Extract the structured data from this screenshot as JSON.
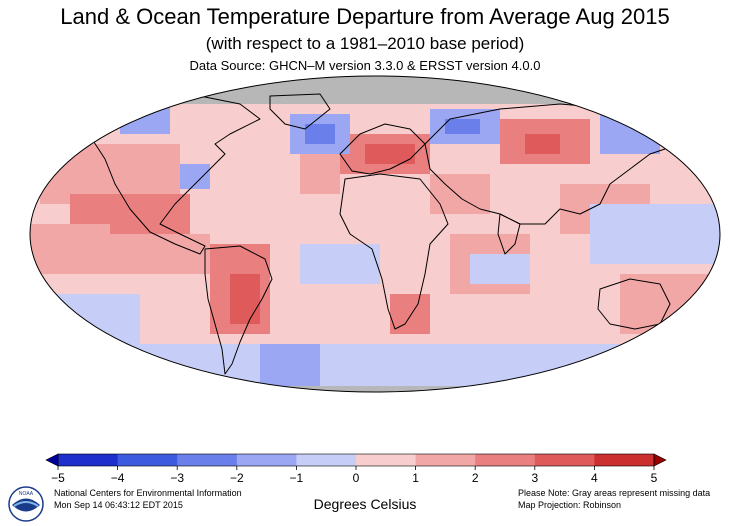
{
  "header": {
    "title": "Land & Ocean Temperature Departure from Average Aug 2015",
    "subtitle": "(with respect to a 1981–2010 base period)",
    "source": "Data Source: GHCN–M version 3.3.0 & ERSST version 4.0.0"
  },
  "map": {
    "projection_note": "Map Projection: Robinson",
    "missing_color": "#b7b7b7",
    "missing_note": "Please Note: Gray areas represent missing data"
  },
  "legend": {
    "unit_label": "Degrees Celsius",
    "tick_labels": [
      "−5",
      "−4",
      "−3",
      "−2",
      "−1",
      "0",
      "1",
      "2",
      "3",
      "4",
      "5"
    ],
    "colors": [
      "#000099",
      "#1e2fcc",
      "#3e5bdf",
      "#6b7fea",
      "#9ba7f2",
      "#c6cdf7",
      "#f7cdcd",
      "#f2a7a7",
      "#ea7f7f",
      "#df5b5b",
      "#cc2f2f",
      "#990000"
    ]
  },
  "footer": {
    "org": "National Centers for Environmental Information",
    "timestamp": "Mon Sep 14 06:43:12 EDT 2015",
    "logo_text": "NOAA"
  }
}
